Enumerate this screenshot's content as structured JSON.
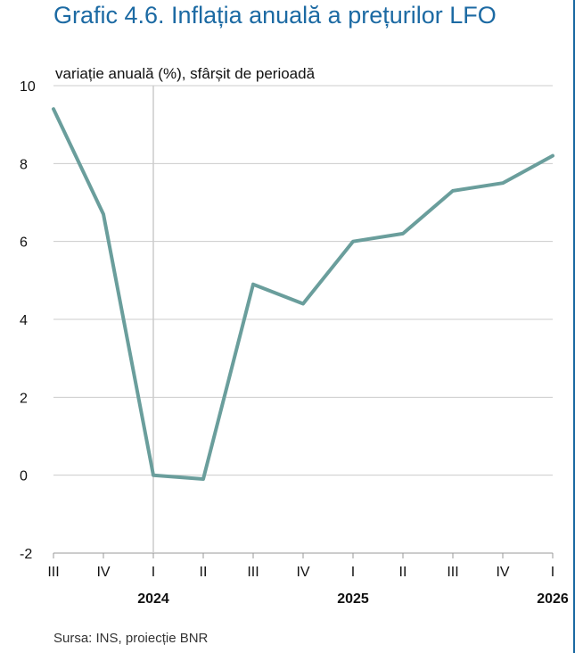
{
  "title": "Grafic 4.6. Inflația anuală a prețurilor LFO",
  "source": "Sursa: INS, proiecție BNR",
  "chart_data": {
    "type": "line",
    "ylabel": "variație anuală (%), sfârșit de perioadă",
    "ylim": [
      -2,
      10
    ],
    "y_ticks": [
      "-2",
      "0",
      "2",
      "4",
      "6",
      "8",
      "10"
    ],
    "x_quarters": [
      "III",
      "IV",
      "I",
      "II",
      "III",
      "IV",
      "I",
      "II",
      "III",
      "IV",
      "I"
    ],
    "x_years": [
      {
        "label": "2024",
        "quarter_index": 2
      },
      {
        "label": "2025",
        "quarter_index": 6
      },
      {
        "label": "2026",
        "quarter_index": 10
      }
    ],
    "series": [
      {
        "values": [
          9.4,
          6.7,
          0.0,
          -0.1,
          4.9,
          4.4,
          6.0,
          6.2,
          7.3,
          7.5,
          8.2
        ],
        "color": "#6a9e9c"
      }
    ],
    "vertical_marker_index": 2,
    "grid": true,
    "colors": {
      "gridline": "#cccccc",
      "axis": "#999999",
      "title": "#1c6aa3"
    }
  }
}
